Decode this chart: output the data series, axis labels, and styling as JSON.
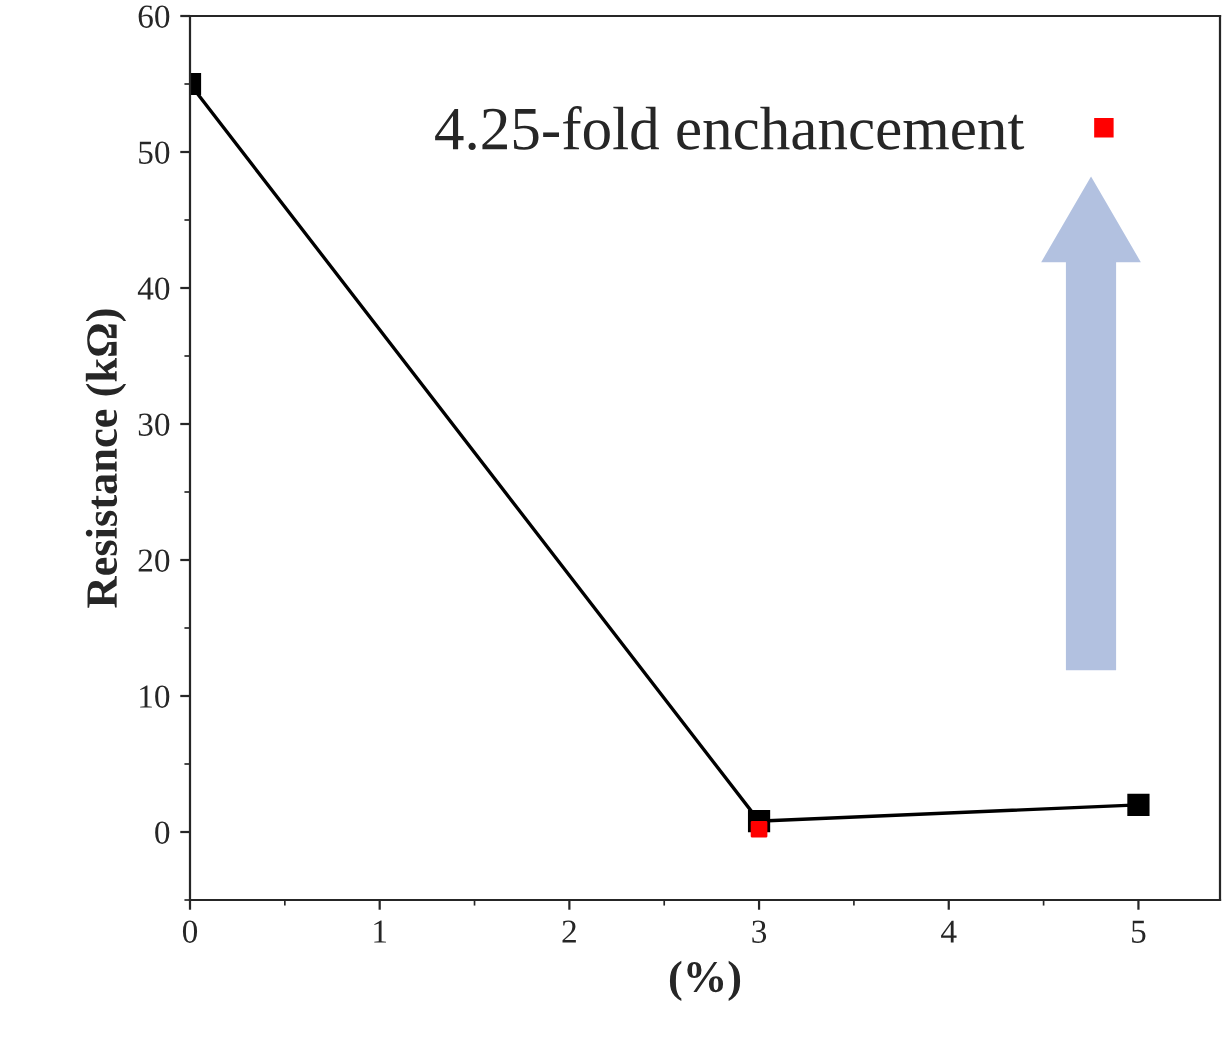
{
  "chart_data": {
    "type": "line",
    "xlabel": "(%)",
    "ylabel": "Resistance (kΩ)",
    "x": [
      0,
      3,
      5
    ],
    "series": [
      {
        "color": "#000000",
        "values": [
          55,
          0.8,
          2
        ],
        "marker": "square"
      },
      {
        "type": "scatter",
        "name": "4.25-fold enchancement",
        "color": "#ff0000",
        "x": [
          3
        ],
        "values": [
          0.2
        ],
        "marker": "square"
      }
    ],
    "xlim": [
      0,
      5.43
    ],
    "ylim": [
      -5,
      60
    ],
    "xticks": [
      0,
      1,
      2,
      3,
      4,
      5
    ],
    "yticks": [
      0,
      10,
      20,
      30,
      40,
      50,
      60
    ],
    "legend": "top right",
    "grid": false
  }
}
